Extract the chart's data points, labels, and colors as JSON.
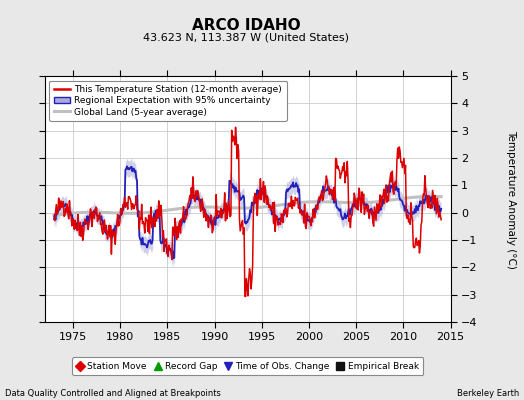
{
  "title": "ARCO IDAHO",
  "subtitle": "43.623 N, 113.387 W (United States)",
  "ylabel": "Temperature Anomaly (°C)",
  "xlabel_left": "Data Quality Controlled and Aligned at Breakpoints",
  "xlabel_right": "Berkeley Earth",
  "ylim": [
    -4,
    5
  ],
  "yticks": [
    -4,
    -3,
    -2,
    -1,
    0,
    1,
    2,
    3,
    4,
    5
  ],
  "xlim": [
    1972,
    2015
  ],
  "xticks": [
    1975,
    1980,
    1985,
    1990,
    1995,
    2000,
    2005,
    2010,
    2015
  ],
  "bg_color": "#e8e8e8",
  "plot_bg_color": "#ffffff",
  "red_color": "#dd0000",
  "blue_color": "#2222bb",
  "blue_band_color": "#aaaadd",
  "gray_color": "#c0c0c0",
  "legend1_labels": [
    "This Temperature Station (12-month average)",
    "Regional Expectation with 95% uncertainty",
    "Global Land (5-year average)"
  ],
  "legend2_labels": [
    "Station Move",
    "Record Gap",
    "Time of Obs. Change",
    "Empirical Break"
  ],
  "legend2_markers": [
    "D",
    "^",
    "v",
    "s"
  ],
  "legend2_colors": [
    "#dd0000",
    "#009900",
    "#2222bb",
    "#111111"
  ]
}
